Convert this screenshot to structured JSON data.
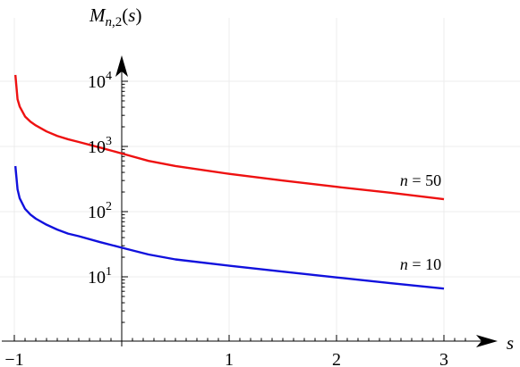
{
  "chart_data": {
    "type": "line",
    "title": "",
    "xlabel": "s",
    "ylabel": "M_{n,2}(s)",
    "xlim": [
      -1,
      3.3
    ],
    "ylim": [
      1,
      40000
    ],
    "yscale": "log",
    "grid": true,
    "x_ticks": [
      {
        "value": -1,
        "label": "−1"
      },
      {
        "value": 1,
        "label": "1"
      },
      {
        "value": 2,
        "label": "2"
      },
      {
        "value": 3,
        "label": "3"
      }
    ],
    "y_ticks": [
      {
        "value": 10,
        "exponent": "1"
      },
      {
        "value": 100,
        "exponent": "2"
      },
      {
        "value": 1000,
        "exponent": "3"
      },
      {
        "value": 10000,
        "exponent": "4"
      }
    ],
    "series": [
      {
        "name": "n = 50",
        "color": "#ee1111",
        "x": [
          -0.99,
          -0.97,
          -0.95,
          -0.9,
          -0.85,
          -0.8,
          -0.7,
          -0.6,
          -0.5,
          -0.4,
          -0.2,
          0,
          0.25,
          0.5,
          1,
          1.5,
          2,
          2.5,
          3
        ],
        "y": [
          12500,
          5300,
          4100,
          2880,
          2400,
          2100,
          1700,
          1450,
          1290,
          1170,
          960,
          780,
          600,
          500,
          380,
          300,
          240,
          195,
          155
        ]
      },
      {
        "name": "n = 10",
        "color": "#1111dd",
        "x": [
          -0.99,
          -0.97,
          -0.95,
          -0.9,
          -0.85,
          -0.8,
          -0.7,
          -0.6,
          -0.5,
          -0.4,
          -0.2,
          0,
          0.25,
          0.5,
          1,
          1.5,
          2,
          2.5,
          3
        ],
        "y": [
          500,
          220,
          160,
          110,
          90,
          78,
          63,
          53,
          46,
          42,
          34,
          28,
          22,
          18.5,
          14.8,
          12,
          9.8,
          8,
          6.6
        ]
      }
    ]
  }
}
